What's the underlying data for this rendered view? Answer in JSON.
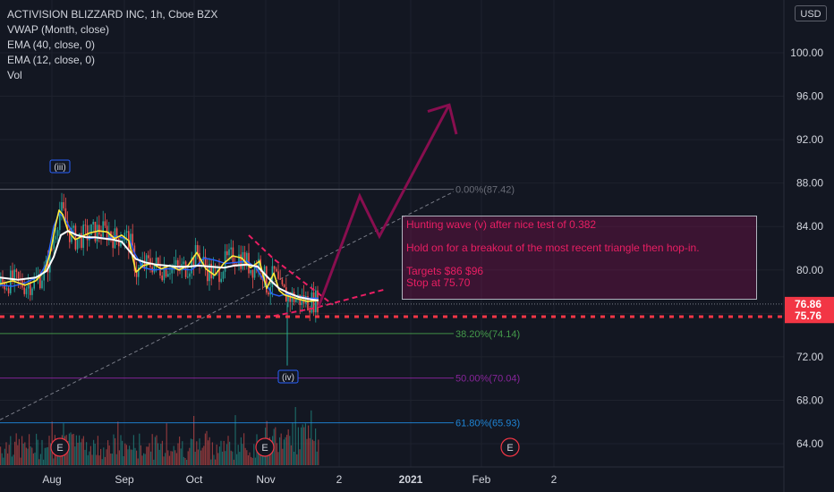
{
  "header": {
    "title": "ACTIVISION BLIZZARD INC, 1h, Cboe BZX",
    "indicators": [
      "VWAP (Month, close)",
      "EMA (40, close, 0)",
      "EMA (12, close, 0)",
      "Vol"
    ],
    "currency": "USD"
  },
  "annotation": {
    "line1": "Hunting wave (v) after nice test of 0.382",
    "line2": "Hold on for a breakout of the most recent triangle then hop-in.",
    "line3": "Targets $86 $96",
    "line4": "Stop at 75.70"
  },
  "wave_labels": [
    "(iii)",
    "(iv)"
  ],
  "event_markers": [
    "E",
    "E",
    "E"
  ],
  "colors": {
    "background": "#131722",
    "fib_0": "#787b86",
    "fib_382": "#4caf50",
    "fib_50": "#9c27b0",
    "fib_618": "#2196f3",
    "projection": "#880e4f",
    "stop": "#f23645",
    "price_tag": "#f23645"
  },
  "chart_data": {
    "type": "line",
    "title": "ACTIVISION BLIZZARD INC, 1h, Cboe BZX",
    "y_ticks": [
      "64.00",
      "68.00",
      "72.00",
      "76.00",
      "80.00",
      "84.00",
      "88.00",
      "92.00",
      "96.00",
      "100.00"
    ],
    "x_ticks": [
      "Aug",
      "Sep",
      "Oct",
      "Nov",
      "2",
      "2021",
      "Feb",
      "2"
    ],
    "ylim": [
      61.5,
      104
    ],
    "price_tags": [
      {
        "label": "76.86",
        "value": 76.86
      },
      {
        "label": "75.76",
        "value": 75.76
      }
    ],
    "fib_levels": [
      {
        "label": "0.00%(87.42)",
        "value": 87.42
      },
      {
        "label": "38.20%(74.14)",
        "value": 74.14
      },
      {
        "label": "50.00%(70.04)",
        "value": 70.04
      },
      {
        "label": "61.80%(65.93)",
        "value": 65.93
      }
    ],
    "stop_level": 75.7,
    "targets": [
      86,
      96
    ],
    "series": [
      {
        "name": "VWAP (Month, close)",
        "x": [
          0,
          14,
          28,
          38,
          45,
          52,
          60,
          66,
          72,
          78,
          84,
          92,
          100,
          110,
          120,
          130,
          140,
          146,
          150,
          160,
          172,
          186,
          200,
          214,
          220,
          228,
          240,
          252,
          264,
          276,
          286,
          292,
          298,
          304,
          312,
          320,
          332,
          344,
          356
        ],
        "y": [
          78.6,
          78.5,
          78.8,
          79.2,
          79.6,
          80.6,
          84,
          85.2,
          84.8,
          83.9,
          83.2,
          83.1,
          82.9,
          83,
          82.9,
          83.1,
          82.9,
          82.6,
          81.6,
          80.2,
          80,
          80.1,
          80.1,
          80,
          80.4,
          81.1,
          80.9,
          80.6,
          80.7,
          80.8,
          80.2,
          79.4,
          78.6,
          77.8,
          77.6,
          77.8,
          77.6,
          77.4,
          77.4
        ]
      },
      {
        "name": "EMA (12, close, 0)",
        "x": [
          0,
          14,
          28,
          40,
          50,
          56,
          62,
          66,
          70,
          76,
          84,
          92,
          100,
          110,
          120,
          128,
          136,
          144,
          152,
          160,
          170,
          180,
          190,
          200,
          210,
          220,
          230,
          240,
          250,
          260,
          270,
          280,
          290,
          298,
          306,
          312,
          318,
          326,
          334,
          344,
          356
        ],
        "y": [
          78.7,
          79,
          78.6,
          79,
          79.9,
          81.5,
          84.1,
          85.5,
          85.1,
          83.6,
          82.8,
          83.1,
          83.4,
          83.6,
          83.5,
          82.9,
          83.2,
          82.7,
          79.8,
          80.4,
          80.6,
          80.1,
          80.4,
          80,
          80.4,
          81.6,
          80.1,
          79.5,
          80.6,
          81.3,
          81.1,
          80.2,
          80.8,
          78.3,
          79.7,
          78.1,
          77.7,
          77.5,
          77.3,
          77.1,
          77.2
        ]
      },
      {
        "name": "EMA (40, close, 0)",
        "x": [
          0,
          20,
          40,
          52,
          60,
          68,
          76,
          86,
          96,
          106,
          116,
          126,
          136,
          144,
          152,
          162,
          174,
          186,
          198,
          210,
          222,
          236,
          250,
          262,
          276,
          288,
          296,
          304,
          312,
          322,
          334,
          346,
          356
        ],
        "y": [
          79.3,
          79.1,
          79.3,
          79.9,
          81.2,
          83.2,
          83.6,
          83.2,
          83,
          83,
          82.9,
          82.8,
          82.6,
          81.8,
          81,
          80.7,
          80.5,
          80.4,
          80.3,
          80.3,
          80.4,
          80.3,
          80.2,
          80.4,
          80.5,
          80.3,
          79.6,
          78.9,
          78.3,
          77.9,
          77.5,
          77.3,
          77.2
        ]
      }
    ]
  }
}
